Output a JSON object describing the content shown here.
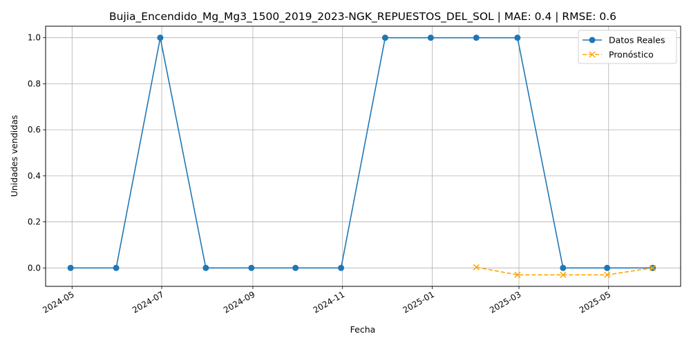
{
  "chart_data": {
    "type": "line",
    "title": "Bujia_Encendido_Mg_Mg3_1500_2019_2023-NGK_REPUESTOS_DEL_SOL | MAE: 0.4 | RMSE: 0.6",
    "xlabel": "Fecha",
    "ylabel": "Unidades vendidas",
    "grid": true,
    "legend_position": "top-right",
    "xlim": [
      "2024-04-13",
      "2025-06-19"
    ],
    "ylim": [
      -0.08,
      1.05
    ],
    "x_ticks": [
      "2024-05",
      "2024-07",
      "2024-09",
      "2024-11",
      "2025-01",
      "2025-03",
      "2025-05"
    ],
    "y_ticks": [
      "0.0",
      "0.2",
      "0.4",
      "0.6",
      "0.8",
      "1.0"
    ],
    "series": [
      {
        "name": "Datos Reales",
        "color": "#1f77b4",
        "line_style": "solid",
        "marker": "circle",
        "points": [
          {
            "x": "2024-04-30",
            "y": 0
          },
          {
            "x": "2024-05-31",
            "y": 0
          },
          {
            "x": "2024-06-30",
            "y": 1
          },
          {
            "x": "2024-07-31",
            "y": 0
          },
          {
            "x": "2024-08-31",
            "y": 0
          },
          {
            "x": "2024-09-30",
            "y": 0
          },
          {
            "x": "2024-10-31",
            "y": 0
          },
          {
            "x": "2024-11-30",
            "y": 1
          },
          {
            "x": "2024-12-31",
            "y": 1
          },
          {
            "x": "2025-01-31",
            "y": 1
          },
          {
            "x": "2025-02-28",
            "y": 1
          },
          {
            "x": "2025-03-31",
            "y": 0
          },
          {
            "x": "2025-04-30",
            "y": 0
          },
          {
            "x": "2025-05-31",
            "y": 0
          }
        ]
      },
      {
        "name": "Pronóstico",
        "color": "#ffa500",
        "line_style": "dashed",
        "marker": "x",
        "points": [
          {
            "x": "2025-01-31",
            "y": 0.003
          },
          {
            "x": "2025-02-28",
            "y": -0.03
          },
          {
            "x": "2025-03-31",
            "y": -0.03
          },
          {
            "x": "2025-04-30",
            "y": -0.03
          },
          {
            "x": "2025-05-31",
            "y": 0.0
          }
        ]
      }
    ]
  }
}
